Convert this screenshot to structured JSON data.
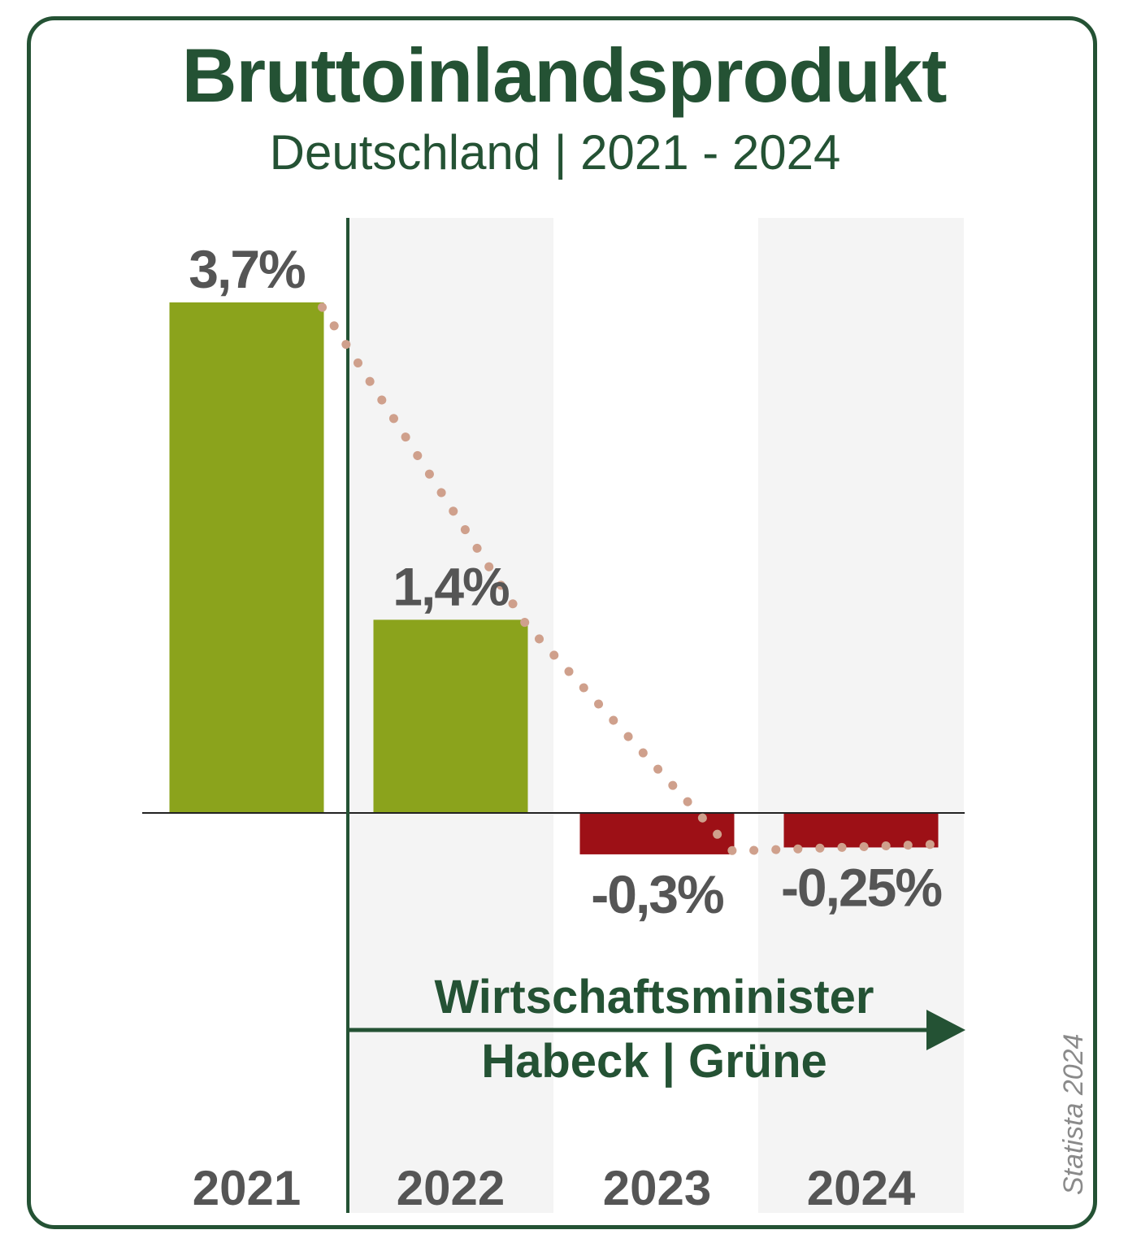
{
  "title": "Bruttoinlandsprodukt",
  "subtitle": "Deutschland | 2021 - 2024",
  "annotation": {
    "line1": "Wirtschaftsminister",
    "line2": "Habeck | Grüne"
  },
  "credit": "Statista 2024",
  "colors": {
    "frame": "#245234",
    "positive": "#8ba31c",
    "negative": "#9d1016",
    "trend": "#cfa08c",
    "label": "#555555",
    "stripe": "#f4f4f4"
  },
  "chart_data": {
    "type": "bar",
    "title": "Bruttoinlandsprodukt",
    "subtitle": "Deutschland | 2021 - 2024",
    "categories": [
      "2021",
      "2022",
      "2023",
      "2024"
    ],
    "values": [
      3.7,
      1.4,
      -0.3,
      -0.25
    ],
    "value_labels": [
      "3,7%",
      "1,4%",
      "-0,3%",
      "-0,25%"
    ],
    "xlabel": "",
    "ylabel": "",
    "ylim": [
      -0.3,
      3.7
    ],
    "grid": false,
    "legend": "none",
    "trend_line": "dotted, through the bar tops",
    "annotation_arrow": "from 2022 onward, labelled Wirtschaftsminister Habeck | Grüne"
  }
}
